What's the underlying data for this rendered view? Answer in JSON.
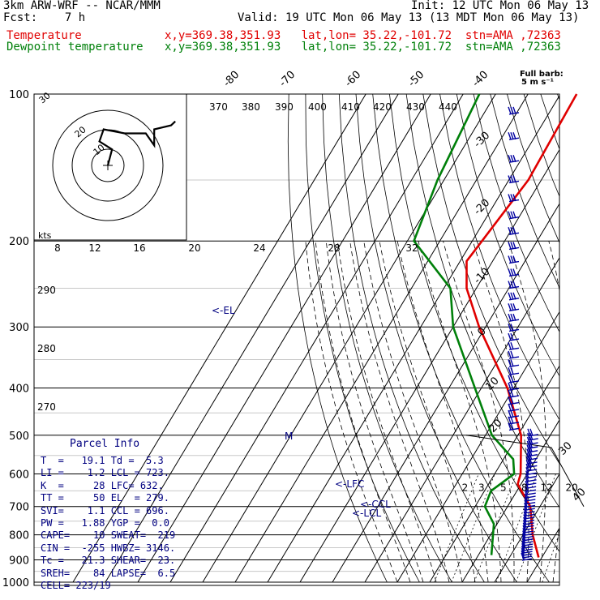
{
  "header": {
    "model": "3km ARW-WRF -- NCAR/MMM",
    "init": "Init: 12 UTC Mon 06 May 13",
    "fcst": "Fcst:    7 h",
    "valid": "Valid: 19 UTC Mon 06 May 13 (13 MDT Mon 06 May 13)",
    "temp_label": "Temperature",
    "temp_info": "x,y=369.38,351.93   lat,lon= 35.22,-101.72  stn=AMA ,72363",
    "dew_label": "Dewpoint temperature",
    "dew_info": "x,y=369.38,351.93   lat,lon= 35.22,-101.72  stn=AMA ,72363",
    "barb_legend": "Full barb:",
    "barb_value": "5 m s⁻¹"
  },
  "parcel": {
    "title": "Parcel Info",
    "rows": [
      "T  =   19.1 Td =  5.3",
      "LI =    1.2 LCL = 723.",
      "K  =     28 LFC= 632.",
      "TT =     50 EL  = 279.",
      "SVI=    1.1 CCL = 696.",
      "PW =   1.88 YGP =  0.0",
      "CAPE=    10 SWEAT=  219",
      "CIN =  -255 HWBZ= 3146.",
      "Tc =   21.3 SHEAR=  23.",
      "SREH=    84 LAPSE=  6.5",
      "CELL= 223/19"
    ]
  },
  "chart_data": {
    "type": "line",
    "title": "",
    "xlabel": "",
    "ylabel": "",
    "pressure_levels": [
      100,
      200,
      300,
      400,
      500,
      600,
      700,
      800,
      900,
      1000
    ],
    "y_scale": "log-pressure",
    "xlim_celsius": [
      -40,
      30
    ],
    "isotherm_labels": [
      -80,
      -70,
      -60,
      -50,
      -40,
      -30,
      -20,
      -10,
      0,
      10,
      20,
      30,
      40
    ],
    "dry_adiabat_labels": [
      370,
      380,
      390,
      400,
      410,
      420,
      430,
      440,
      290,
      280,
      270
    ],
    "mixing_ratio_labels": [
      "2",
      "3",
      "5",
      "8",
      "12",
      "20"
    ],
    "series": [
      {
        "name": "Temperature",
        "color": "#e00000",
        "points": [
          [
            100,
            -55
          ],
          [
            150,
            -54
          ],
          [
            200,
            -57
          ],
          [
            220,
            -58
          ],
          [
            250,
            -53
          ],
          [
            300,
            -42
          ],
          [
            400,
            -22
          ],
          [
            500,
            -9
          ],
          [
            600,
            -2
          ],
          [
            630,
            -1
          ],
          [
            700,
            7
          ],
          [
            800,
            13
          ],
          [
            890,
            19
          ]
        ]
      },
      {
        "name": "Dewpoint temperature",
        "color": "#00800a",
        "points": [
          [
            100,
            -85
          ],
          [
            150,
            -82
          ],
          [
            200,
            -78
          ],
          [
            250,
            -58
          ],
          [
            300,
            -50
          ],
          [
            400,
            -32
          ],
          [
            500,
            -18
          ],
          [
            560,
            -7
          ],
          [
            600,
            -4
          ],
          [
            650,
            -8
          ],
          [
            700,
            -7
          ],
          [
            760,
            -1
          ],
          [
            880,
            4
          ]
        ]
      }
    ],
    "annotations": [
      "<-EL",
      "<-LFC",
      "<-CCL",
      "<-LCL",
      "M"
    ],
    "hodograph": {
      "unit_label": "kts",
      "speed_labels": [
        "8",
        "12",
        "16",
        "20",
        "24",
        "28",
        "32"
      ],
      "ring_labels": [
        "10",
        "20",
        "30"
      ],
      "trace": [
        [
          0,
          0
        ],
        [
          1,
          4
        ],
        [
          -2,
          6
        ],
        [
          -1,
          9
        ],
        [
          4,
          8
        ],
        [
          9,
          8
        ],
        [
          11,
          5
        ],
        [
          11,
          9
        ],
        [
          15,
          10
        ],
        [
          16,
          11
        ]
      ]
    },
    "wind_barbs": {
      "side_labels": [
        "30",
        "40"
      ]
    }
  }
}
